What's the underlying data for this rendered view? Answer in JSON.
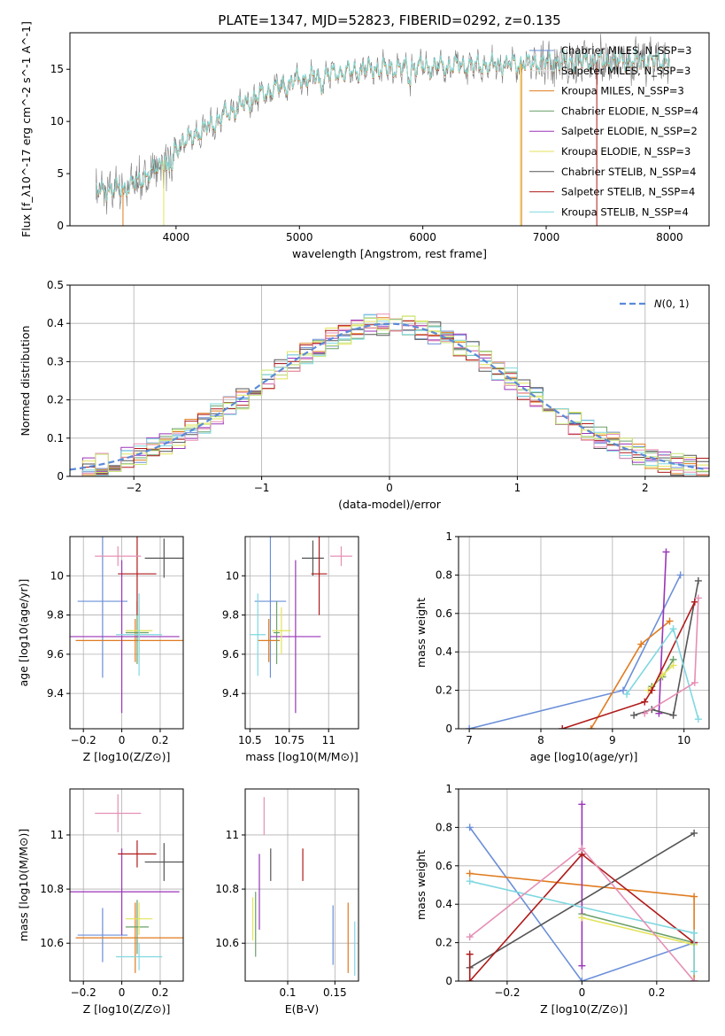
{
  "colors": {
    "Chabrier MILES": "#6b8fd8",
    "Salpeter MILES": "#e4e4e4",
    "Kroupa MILES": "#e07b1f",
    "Chabrier ELODIE": "#6aa06a",
    "Salpeter ELODIE": "#9a35b8",
    "Kroupa ELODIE": "#e3e35a",
    "Chabrier STELIB": "#555555",
    "Salpeter STELIB": "#b01a1a",
    "Kroupa STELIB": "#7fd8e0",
    "pink": "#e58fb4",
    "lime": "#c8e87a",
    "gaussian": "#5a8ad8",
    "spectrum": "#7a7a7a"
  },
  "chart_data": [
    {
      "id": "spectrum",
      "type": "line",
      "title": "PLATE=1347, MJD=52823, FIBERID=0292, z=0.135",
      "xlabel": "wavelength [Angstrom, rest frame]",
      "ylabel": "Flux [f_λ10^-17 erg cm^-2 s^-1 A^-1]",
      "xlim": [
        3140,
        8320
      ],
      "ylim": [
        0,
        18.5
      ],
      "xticks": [
        4000,
        5000,
        6000,
        7000,
        8000
      ],
      "yticks": [
        0,
        5,
        10,
        15
      ],
      "legend": [
        "Chabrier MILES, N_SSP=3",
        "Salpeter MILES, N_SSP=3",
        "Kroupa MILES, N_SSP=3",
        "Chabrier ELODIE, N_SSP=4",
        "Salpeter ELODIE, N_SSP=2",
        "Kroupa ELODIE, N_SSP=3",
        "Chabrier STELIB, N_SSP=4",
        "Salpeter STELIB, N_SSP=4",
        "Kroupa STELIB, N_SSP=4"
      ],
      "continuum": [
        [
          3350,
          3.2
        ],
        [
          3600,
          3.6
        ],
        [
          3800,
          5.0
        ],
        [
          4000,
          7.5
        ],
        [
          4200,
          9.0
        ],
        [
          4400,
          10.6
        ],
        [
          4700,
          12.6
        ],
        [
          5000,
          14.0
        ],
        [
          5300,
          14.6
        ],
        [
          5600,
          15.0
        ],
        [
          6000,
          15.2
        ],
        [
          6300,
          15.3
        ],
        [
          6600,
          15.4
        ],
        [
          7000,
          15.6
        ],
        [
          7400,
          15.7
        ],
        [
          7800,
          15.8
        ],
        [
          8000,
          15.8
        ]
      ]
    },
    {
      "id": "residuals",
      "type": "line",
      "xlabel": "(data-model)/error",
      "ylabel": "Normed distribution",
      "xlim": [
        -2.5,
        2.5
      ],
      "ylim": [
        0,
        0.5
      ],
      "xticks": [
        -2,
        -1,
        0,
        1,
        2
      ],
      "yticks": [
        0.0,
        0.1,
        0.2,
        0.3,
        0.4,
        0.5
      ],
      "legend": "N(0,1)",
      "gaussian": {
        "mean": 0,
        "sigma": 1
      }
    },
    {
      "id": "age_vs_Z",
      "type": "scatter",
      "xlabel": "Z [log10(Z/Z⊙)]",
      "ylabel": "age [log10(age/yr)]",
      "xlim": [
        -0.27,
        0.32
      ],
      "ylim": [
        9.22,
        10.2
      ],
      "xticks": [
        -0.2,
        0.0,
        0.2
      ],
      "yticks": [
        9.4,
        9.6,
        9.8,
        10.0
      ],
      "points": [
        {
          "c": "Chabrier MILES",
          "x": -0.1,
          "y": 9.87,
          "ex": 0.13,
          "ey": 0.39
        },
        {
          "c": "Kroupa MILES",
          "x": 0.07,
          "y": 9.67,
          "ex": 0.31,
          "ey": 0.11
        },
        {
          "c": "Chabrier ELODIE",
          "x": 0.08,
          "y": 9.71,
          "ex": 0.06,
          "ey": 0.16
        },
        {
          "c": "Salpeter ELODIE",
          "x": 0.0,
          "y": 9.69,
          "ex": 0.3,
          "ey": 0.39
        },
        {
          "c": "Kroupa ELODIE",
          "x": 0.09,
          "y": 9.72,
          "ex": 0.07,
          "ey": 0.12
        },
        {
          "c": "Chabrier STELIB",
          "x": 0.22,
          "y": 10.09,
          "ex": 0.1,
          "ey": 0.1
        },
        {
          "c": "Salpeter STELIB",
          "x": 0.08,
          "y": 10.01,
          "ex": 0.1,
          "ey": 0.21
        },
        {
          "c": "Kroupa STELIB",
          "x": 0.09,
          "y": 9.7,
          "ex": 0.12,
          "ey": 0.21
        },
        {
          "c": "pink",
          "x": -0.02,
          "y": 10.1,
          "ex": 0.12,
          "ey": 0.05
        }
      ]
    },
    {
      "id": "age_vs_mass",
      "type": "scatter",
      "xlabel": "mass [log10(M/M⊙)]",
      "ylabel": "",
      "xlim": [
        10.47,
        11.19
      ],
      "ylim": [
        9.22,
        10.2
      ],
      "xticks": [
        10.5,
        10.75,
        11.0
      ],
      "yticks": [
        9.4,
        9.6,
        9.8,
        10.0
      ],
      "points": [
        {
          "c": "Chabrier MILES",
          "x": 10.63,
          "y": 9.87,
          "ex": 0.1,
          "ey": 0.39
        },
        {
          "c": "Kroupa MILES",
          "x": 10.62,
          "y": 9.67,
          "ex": 0.07,
          "ey": 0.11
        },
        {
          "c": "Chabrier ELODIE",
          "x": 10.67,
          "y": 9.71,
          "ex": 0.02,
          "ey": 0.16
        },
        {
          "c": "Salpeter ELODIE",
          "x": 10.79,
          "y": 9.69,
          "ex": 0.16,
          "ey": 0.39
        },
        {
          "c": "Kroupa ELODIE",
          "x": 10.7,
          "y": 9.72,
          "ex": 0.06,
          "ey": 0.12
        },
        {
          "c": "Chabrier STELIB",
          "x": 10.9,
          "y": 10.09,
          "ex": 0.07,
          "ey": 0.09
        },
        {
          "c": "Salpeter STELIB",
          "x": 10.94,
          "y": 10.01,
          "ex": 0.05,
          "ey": 0.21
        },
        {
          "c": "Kroupa STELIB",
          "x": 10.55,
          "y": 9.7,
          "ex": 0.05,
          "ey": 0.21
        },
        {
          "c": "pink",
          "x": 11.08,
          "y": 10.1,
          "ex": 0.07,
          "ey": 0.05
        }
      ]
    },
    {
      "id": "weight_vs_age",
      "type": "line",
      "xlabel": "age [log10(age/yr)]",
      "ylabel": "mass weight",
      "xlim": [
        6.85,
        10.35
      ],
      "ylim": [
        0,
        1
      ],
      "xticks": [
        7,
        8,
        9,
        10
      ],
      "yticks": [
        0.0,
        0.2,
        0.4,
        0.6,
        0.8,
        1.0
      ],
      "series": [
        {
          "c": "Chabrier MILES",
          "points": [
            [
              7.0,
              0.0
            ],
            [
              9.15,
              0.2
            ],
            [
              9.95,
              0.8
            ]
          ]
        },
        {
          "c": "Kroupa MILES",
          "points": [
            [
              8.7,
              0.0
            ],
            [
              9.4,
              0.44
            ],
            [
              9.8,
              0.56
            ]
          ]
        },
        {
          "c": "Chabrier ELODIE",
          "points": [
            [
              9.55,
              0.22
            ],
            [
              9.7,
              0.27
            ],
            [
              9.85,
              0.36
            ]
          ]
        },
        {
          "c": "Salpeter ELODIE",
          "points": [
            [
              9.65,
              0.08
            ],
            [
              9.75,
              0.92
            ]
          ]
        },
        {
          "c": "Kroupa ELODIE",
          "points": [
            [
              9.5,
              0.2
            ],
            [
              9.7,
              0.28
            ],
            [
              9.85,
              0.33
            ]
          ]
        },
        {
          "c": "Chabrier STELIB",
          "points": [
            [
              9.3,
              0.07
            ],
            [
              9.55,
              0.1
            ],
            [
              9.85,
              0.07
            ],
            [
              10.2,
              0.77
            ]
          ]
        },
        {
          "c": "Salpeter STELIB",
          "points": [
            [
              8.3,
              0.0
            ],
            [
              9.45,
              0.14
            ],
            [
              9.55,
              0.2
            ],
            [
              10.15,
              0.66
            ]
          ]
        },
        {
          "c": "Kroupa STELIB",
          "points": [
            [
              9.2,
              0.18
            ],
            [
              9.85,
              0.52
            ],
            [
              10.2,
              0.05
            ]
          ]
        },
        {
          "c": "pink",
          "points": [
            [
              9.45,
              0.08
            ],
            [
              10.15,
              0.24
            ],
            [
              10.2,
              0.68
            ]
          ]
        }
      ]
    },
    {
      "id": "mass_vs_Z",
      "type": "scatter",
      "xlabel": "Z [log10(Z/Z⊙)]",
      "ylabel": "mass [log10(M/M⊙)]",
      "xlim": [
        -0.27,
        0.32
      ],
      "ylim": [
        10.46,
        11.17
      ],
      "xticks": [
        -0.2,
        0.0,
        0.2
      ],
      "yticks": [
        10.6,
        10.8,
        11.0
      ],
      "points": [
        {
          "c": "Chabrier MILES",
          "x": -0.1,
          "y": 10.63,
          "ex": 0.13,
          "ey": 0.1
        },
        {
          "c": "Kroupa MILES",
          "x": 0.07,
          "y": 10.62,
          "ex": 0.31,
          "ey": 0.13
        },
        {
          "c": "Chabrier ELODIE",
          "x": 0.08,
          "y": 10.66,
          "ex": 0.06,
          "ey": 0.1
        },
        {
          "c": "Salpeter ELODIE",
          "x": 0.0,
          "y": 10.79,
          "ex": 0.3,
          "ey": 0.16
        },
        {
          "c": "Kroupa ELODIE",
          "x": 0.09,
          "y": 10.69,
          "ex": 0.07,
          "ey": 0.06
        },
        {
          "c": "Chabrier STELIB",
          "x": 0.22,
          "y": 10.9,
          "ex": 0.1,
          "ey": 0.07
        },
        {
          "c": "Salpeter STELIB",
          "x": 0.08,
          "y": 10.93,
          "ex": 0.1,
          "ey": 0.05
        },
        {
          "c": "Kroupa STELIB",
          "x": 0.09,
          "y": 10.55,
          "ex": 0.12,
          "ey": 0.05
        },
        {
          "c": "pink",
          "x": -0.02,
          "y": 11.08,
          "ex": 0.12,
          "ey": 0.07
        }
      ]
    },
    {
      "id": "mass_vs_EBV",
      "type": "scatter",
      "xlabel": "E(B-V)",
      "ylabel": "",
      "xlim": [
        0.055,
        0.175
      ],
      "ylim": [
        10.46,
        11.17
      ],
      "xticks": [
        0.1,
        0.15
      ],
      "yticks": [
        10.6,
        10.8,
        11.0
      ],
      "points": [
        {
          "c": "Chabrier MILES",
          "x": 0.148,
          "y": 10.63,
          "ex": 0,
          "ey": 0.11
        },
        {
          "c": "Kroupa MILES",
          "x": 0.164,
          "y": 10.62,
          "ex": 0,
          "ey": 0.13
        },
        {
          "c": "Chabrier ELODIE",
          "x": 0.066,
          "y": 10.67,
          "ex": 0,
          "ey": 0.12
        },
        {
          "c": "Salpeter ELODIE",
          "x": 0.07,
          "y": 10.79,
          "ex": 0,
          "ey": 0.14
        },
        {
          "c": "Kroupa ELODIE",
          "x": 0.063,
          "y": 10.69,
          "ex": 0,
          "ey": 0.08
        },
        {
          "c": "Chabrier STELIB",
          "x": 0.082,
          "y": 10.89,
          "ex": 0,
          "ey": 0.06
        },
        {
          "c": "Salpeter STELIB",
          "x": 0.116,
          "y": 10.89,
          "ex": 0,
          "ey": 0.06
        },
        {
          "c": "Kroupa STELIB",
          "x": 0.171,
          "y": 10.58,
          "ex": 0,
          "ey": 0.1
        },
        {
          "c": "pink",
          "x": 0.075,
          "y": 11.07,
          "ex": 0,
          "ey": 0.07
        }
      ]
    },
    {
      "id": "weight_vs_Z",
      "type": "line",
      "xlabel": "Z [log10(Z/Z⊙)]",
      "ylabel": "mass weight",
      "xlim": [
        -0.33,
        0.34
      ],
      "ylim": [
        0,
        1
      ],
      "xticks": [
        -0.2,
        0.0,
        0.2
      ],
      "yticks": [
        0.0,
        0.2,
        0.4,
        0.6,
        0.8,
        1.0
      ],
      "series": [
        {
          "c": "Chabrier MILES",
          "points": [
            [
              -0.3,
              0.8
            ],
            [
              0.0,
              0.0
            ],
            [
              0.3,
              0.2
            ]
          ]
        },
        {
          "c": "Kroupa MILES",
          "points": [
            [
              -0.3,
              0.56
            ],
            [
              0.3,
              0.44
            ],
            [
              0.3,
              0.0
            ]
          ]
        },
        {
          "c": "Chabrier ELODIE",
          "points": [
            [
              0.0,
              0.35
            ],
            [
              0.3,
              0.2
            ]
          ]
        },
        {
          "c": "Salpeter ELODIE",
          "points": [
            [
              0.0,
              0.08
            ],
            [
              0.0,
              0.92
            ]
          ]
        },
        {
          "c": "Kroupa ELODIE",
          "points": [
            [
              0.0,
              0.33
            ],
            [
              0.3,
              0.19
            ]
          ]
        },
        {
          "c": "Chabrier STELIB",
          "points": [
            [
              -0.3,
              0.07
            ],
            [
              0.3,
              0.77
            ]
          ]
        },
        {
          "c": "Salpeter STELIB",
          "points": [
            [
              -0.3,
              0.14
            ],
            [
              -0.3,
              0.0
            ],
            [
              0.0,
              0.66
            ],
            [
              0.3,
              0.2
            ]
          ]
        },
        {
          "c": "Kroupa STELIB",
          "points": [
            [
              -0.3,
              0.52
            ],
            [
              0.3,
              0.25
            ],
            [
              0.3,
              0.05
            ]
          ]
        },
        {
          "c": "pink",
          "points": [
            [
              -0.3,
              0.23
            ],
            [
              0.0,
              0.69
            ],
            [
              0.3,
              0.0
            ]
          ]
        }
      ]
    }
  ]
}
